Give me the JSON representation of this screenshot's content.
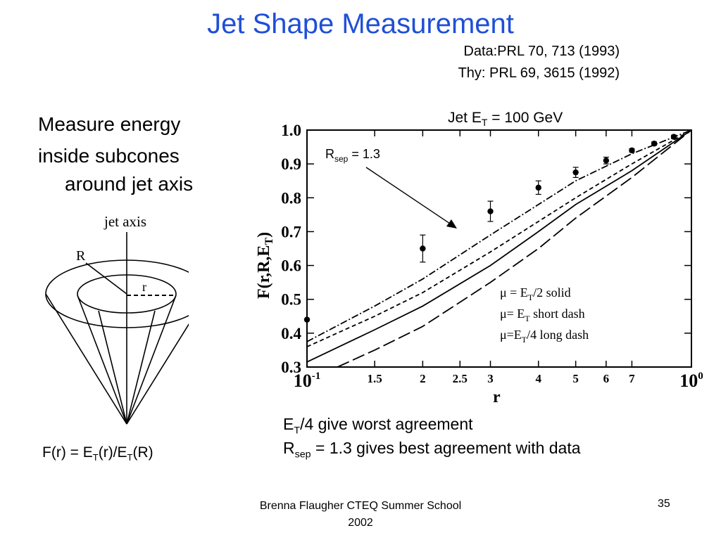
{
  "slide": {
    "title": "Jet Shape Measurement",
    "refs": [
      "Data:PRL 70, 713 (1993)",
      "Thy: PRL 69, 3615 (1992)"
    ],
    "bullets": [
      "Measure energy",
      "inside subcones",
      "around jet axis"
    ],
    "cone": {
      "axis_label": "jet axis",
      "big_r": "R",
      "small_r": "r"
    },
    "formula": {
      "f": "F(r) = E",
      "t1": "T",
      "mid": "(r)/E",
      "t2": "T",
      "end": "(R)"
    },
    "conclusions": {
      "line1": {
        "e": "E",
        "t": "T",
        "rest": "/4 give worst agreement"
      },
      "line2": {
        "r": "R",
        "sep": "sep",
        "rest": " = 1.3 gives best agreement with data"
      }
    },
    "footer": "Brenna Flaugher CTEQ Summer School 2002",
    "page": "35"
  },
  "chart_data": {
    "type": "line",
    "title": {
      "pre": "Jet E",
      "sub": "T",
      "post": " = 100 GeV"
    },
    "ylabel": {
      "pre": "F(r,R,E",
      "sub": "T",
      "post": ")"
    },
    "xlabel": "r",
    "xscale": "log",
    "xlim": [
      0.1,
      1.0
    ],
    "ylim": [
      0.3,
      1.0
    ],
    "x_ticks": [
      {
        "v": 0.1,
        "label": "10",
        "exp": "-1"
      },
      {
        "v": 0.15,
        "label": "1.5"
      },
      {
        "v": 0.2,
        "label": "2"
      },
      {
        "v": 0.25,
        "label": "2.5"
      },
      {
        "v": 0.3,
        "label": "3"
      },
      {
        "v": 0.4,
        "label": "4"
      },
      {
        "v": 0.5,
        "label": "5"
      },
      {
        "v": 0.6,
        "label": "6"
      },
      {
        "v": 0.7,
        "label": "7"
      },
      {
        "v": 1.0,
        "label": "10",
        "exp": "0"
      }
    ],
    "y_ticks": [
      "0.3",
      "0.4",
      "0.5",
      "0.6",
      "0.7",
      "0.8",
      "0.9",
      "1.0"
    ],
    "data": {
      "x": [
        0.1,
        0.2,
        0.3,
        0.4,
        0.5,
        0.6,
        0.7,
        0.8,
        0.9
      ],
      "y": [
        0.44,
        0.65,
        0.76,
        0.83,
        0.875,
        0.91,
        0.94,
        0.96,
        0.98
      ],
      "err": [
        0.0,
        0.04,
        0.03,
        0.02,
        0.015,
        0.01,
        0.005,
        0.005,
        0.005
      ]
    },
    "series": [
      {
        "style": "dashdot",
        "x": [
          0.1,
          0.15,
          0.2,
          0.3,
          0.4,
          0.5,
          0.7,
          1.0
        ],
        "y": [
          0.375,
          0.48,
          0.56,
          0.69,
          0.78,
          0.85,
          0.93,
          1.0
        ]
      },
      {
        "style": "shortdash",
        "x": [
          0.1,
          0.15,
          0.2,
          0.3,
          0.4,
          0.5,
          0.7,
          1.0
        ],
        "y": [
          0.36,
          0.45,
          0.52,
          0.64,
          0.73,
          0.8,
          0.9,
          1.0
        ]
      },
      {
        "style": "solid",
        "x": [
          0.1,
          0.15,
          0.2,
          0.3,
          0.4,
          0.5,
          0.7,
          1.0
        ],
        "y": [
          0.315,
          0.41,
          0.48,
          0.6,
          0.7,
          0.78,
          0.88,
          1.0
        ]
      },
      {
        "style": "longdash",
        "x": [
          0.12,
          0.15,
          0.2,
          0.3,
          0.4,
          0.5,
          0.7,
          1.0
        ],
        "y": [
          0.3,
          0.35,
          0.42,
          0.55,
          0.65,
          0.74,
          0.86,
          1.0
        ]
      }
    ],
    "annotation": {
      "r": "R",
      "sub": "sep",
      "rest": " = 1.3"
    },
    "legend": [
      {
        "a": "μ = E",
        "t": "T",
        "b": "/2 solid"
      },
      {
        "a": "μ= E",
        "t": "T",
        "b": " short dash"
      },
      {
        "a": "μ=E",
        "t": "T",
        "b": "/4 long dash"
      }
    ]
  }
}
